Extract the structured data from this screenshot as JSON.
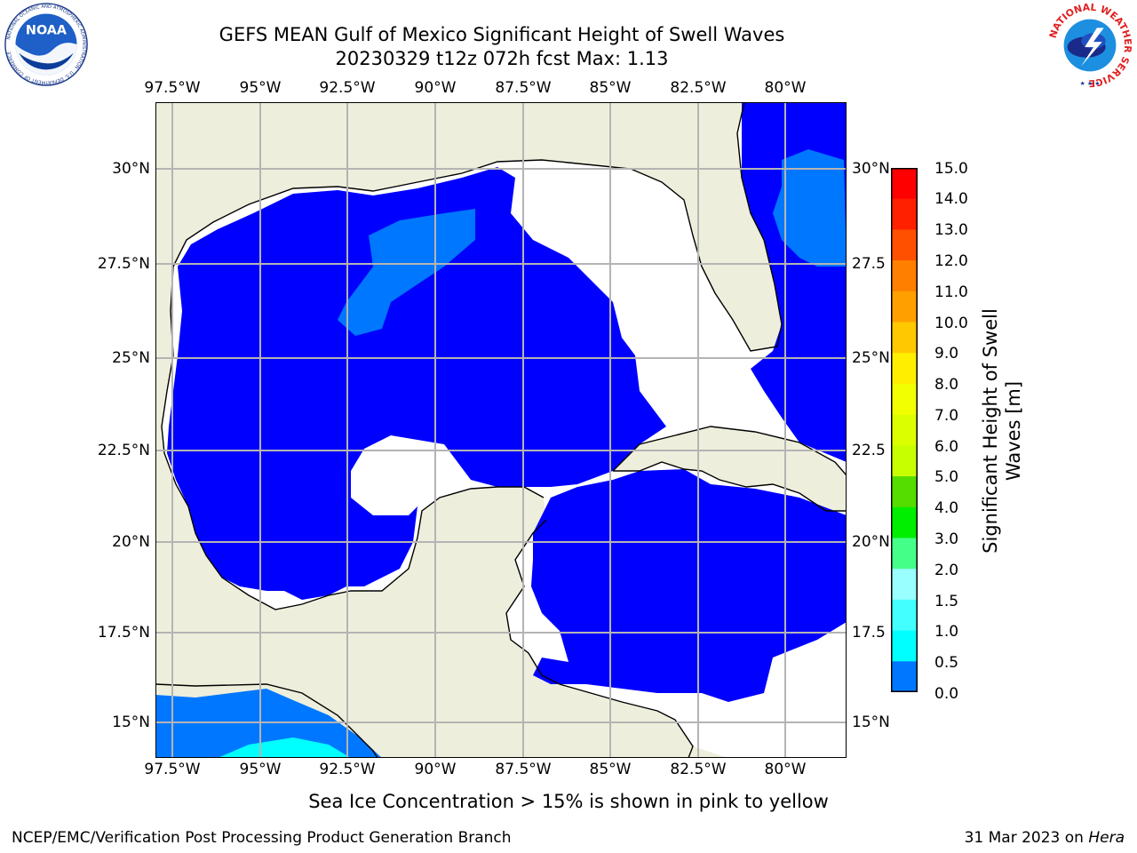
{
  "header": {
    "title_line1": "GEFS MEAN Gulf of Mexico Significant Height of Swell Waves",
    "title_line2": "20230329 t12z 072h fcst   Max: 1.13"
  },
  "logos": {
    "noaa": {
      "wordmark": "NOAA",
      "ring_text": "NATIONAL OCEANIC AND ATMOSPHERIC ADMINISTRATION · U.S. DEPARTMENT OF COMMERCE"
    },
    "nws": {
      "ring_text": "NATIONAL WEATHER SERVICE"
    }
  },
  "map": {
    "lon_labels": [
      "97.5°W",
      "95°W",
      "92.5°W",
      "90°W",
      "87.5°W",
      "85°W",
      "82.5°W",
      "80°W"
    ],
    "lat_labels_left": [
      "30°N",
      "27.5°N",
      "25°N",
      "22.5°N",
      "20°N",
      "17.5°N",
      "15°N"
    ],
    "lat_labels_right": [
      "30°N",
      "27.5",
      "25°N",
      "22.5",
      "20°N",
      "17.5",
      "15°N"
    ],
    "colors": {
      "land": "#eeeedc",
      "ocean_low": "#0000ff",
      "ocean_mid": "#0077ff",
      "ocean_high": "#00ffff",
      "no_data": "#ffffff",
      "grid": "#b4b4b4",
      "coast": "#000000"
    }
  },
  "colorbar": {
    "title": "Significant Height of Swell Waves [m]",
    "labels": [
      "15.0",
      "14.0",
      "13.0",
      "12.0",
      "11.0",
      "10.0",
      "9.0",
      "8.0",
      "7.0",
      "6.0",
      "5.0",
      "4.0",
      "3.0",
      "2.0",
      "1.5",
      "1.0",
      "0.5",
      "0.0"
    ],
    "colors": [
      "#ff0000",
      "#ff2000",
      "#ff5000",
      "#ff8000",
      "#ffa000",
      "#ffc800",
      "#ffee00",
      "#f2ff00",
      "#dcff00",
      "#c8ff00",
      "#55dd00",
      "#00ee00",
      "#44ff88",
      "#99ffff",
      "#44ffff",
      "#00ffff",
      "#0077ff",
      "#0000ff"
    ]
  },
  "footer": {
    "note": "Sea Ice Concentration > 15% is shown in pink to yellow",
    "credit": "NCEP/EMC/Verification Post Processing Product Generation Branch",
    "date": "31 Mar 2023 on",
    "host": "Hera"
  }
}
